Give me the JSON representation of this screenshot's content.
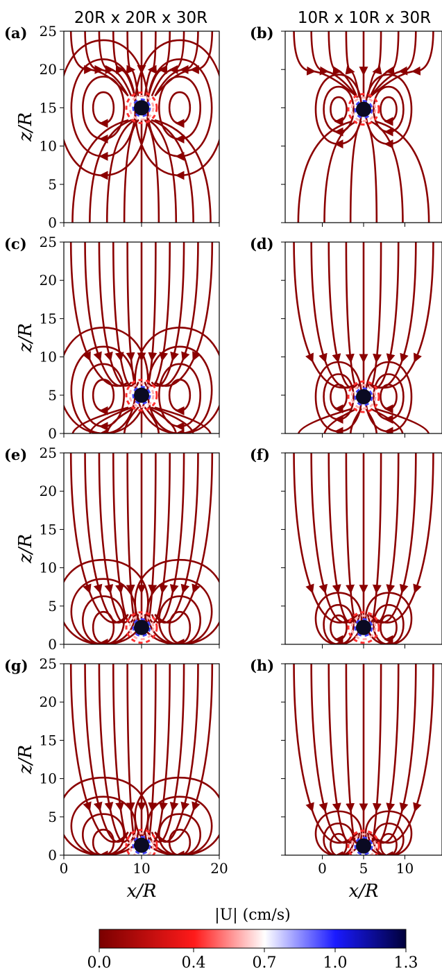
{
  "columns": [
    {
      "title": "20R x 20R x 30R"
    },
    {
      "title": "10R x 10R x 30R"
    }
  ],
  "panels": [
    {
      "letter": "(a)",
      "col": 0,
      "row": 0,
      "sphere_x": 10,
      "sphere_z": 15
    },
    {
      "letter": "(b)",
      "col": 1,
      "row": 0,
      "sphere_x": 5,
      "sphere_z": 14.8
    },
    {
      "letter": "(c)",
      "col": 0,
      "row": 1,
      "sphere_x": 10,
      "sphere_z": 5
    },
    {
      "letter": "(d)",
      "col": 1,
      "row": 1,
      "sphere_x": 5,
      "sphere_z": 4.8
    },
    {
      "letter": "(e)",
      "col": 0,
      "row": 2,
      "sphere_x": 10,
      "sphere_z": 2.2
    },
    {
      "letter": "(f)",
      "col": 1,
      "row": 2,
      "sphere_x": 5,
      "sphere_z": 2.2
    },
    {
      "letter": "(g)",
      "col": 0,
      "row": 3,
      "sphere_x": 10,
      "sphere_z": 1.3
    },
    {
      "letter": "(h)",
      "col": 1,
      "row": 3,
      "sphere_x": 5,
      "sphere_z": 1.2
    }
  ],
  "chart_data": {
    "type": "streamplot",
    "ylabel": "z/R",
    "xlabel": "x/R",
    "ylim": [
      0,
      25
    ],
    "yticks": [
      "0",
      "5",
      "10",
      "15",
      "20",
      "25"
    ],
    "left_xlim": [
      0,
      20
    ],
    "left_xticks": [
      "0",
      "10",
      "20"
    ],
    "right_xlim": [
      -4.5,
      14.5
    ],
    "right_xticks": [
      "0",
      "5",
      "10"
    ],
    "colorbar": {
      "label": "|U| (cm/s)",
      "ticks": [
        "0.0",
        "0.4",
        "0.7",
        "1.0",
        "1.3"
      ],
      "tick_values": [
        0.0,
        0.4,
        0.7,
        1.0,
        1.3
      ],
      "range": [
        0.0,
        1.3
      ],
      "colors": [
        "#7a0000",
        "#ff1a1a",
        "#ffffff",
        "#1a1aff",
        "#00003a"
      ]
    },
    "streamline_color": "#8b0000",
    "sphere_color": "#0a0a22"
  }
}
